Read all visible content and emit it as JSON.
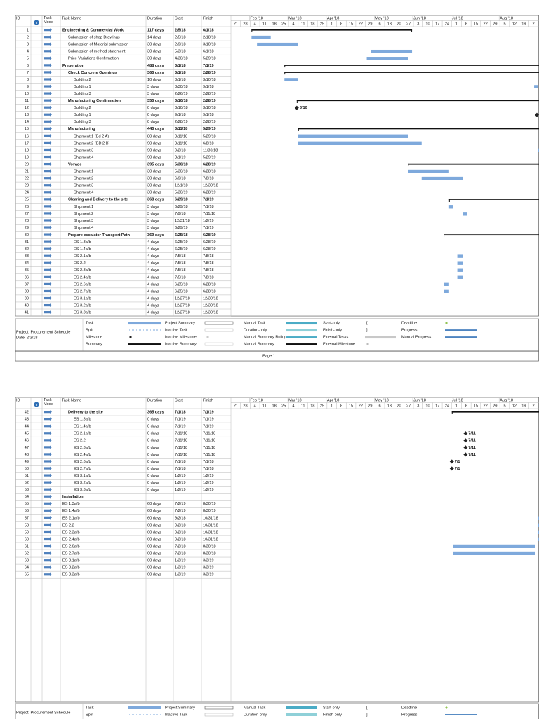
{
  "columns": [
    "ID",
    "Task Mode",
    "Task Name",
    "Duration",
    "Start",
    "Finish"
  ],
  "timescale": {
    "months": [
      "Feb '18",
      "Mar '18",
      "Apr '18",
      "May '18",
      "Jun '18",
      "Jul '18",
      "Aug '18"
    ],
    "days": [
      "21",
      "28",
      "4",
      "11",
      "18",
      "25",
      "4",
      "11",
      "18",
      "25",
      "1",
      "8",
      "15",
      "22",
      "29",
      "6",
      "13",
      "20",
      "27",
      "3",
      "10",
      "17",
      "24",
      "1",
      "8",
      "15",
      "22",
      "29",
      "5",
      "12",
      "19",
      "2"
    ]
  },
  "legend": [
    [
      "Task",
      "Split",
      "Milestone",
      "Summary"
    ],
    [
      "Project Summary",
      "Inactive Task",
      "Inactive Milestone",
      "Inactive Summary"
    ],
    [
      "Manual Task",
      "Duration-only",
      "Manual Summary Rollup",
      "Manual Summary"
    ],
    [
      "Start-only",
      "Finish-only",
      "External Tasks",
      "External Milestone"
    ],
    [
      "Deadline",
      "Progress",
      "Manual Progress"
    ]
  ],
  "pages": [
    {
      "footer": {
        "project": "Project: Procurement Schedule",
        "date": "Date: 2/3/18",
        "page": "Page 1"
      },
      "rows": [
        {
          "id": 1,
          "name": "Engineering & Commercial Work",
          "duration": "117 days",
          "start": "2/5/18",
          "finish": "6/1/18",
          "level": 1,
          "summary": true
        },
        {
          "id": 2,
          "name": "Submission of shop Drawings",
          "duration": "14 days",
          "start": "2/5/18",
          "finish": "2/18/18",
          "level": 2
        },
        {
          "id": 3,
          "name": "Submission of Material submission",
          "duration": "30 days",
          "start": "2/9/18",
          "finish": "3/10/18",
          "level": 2
        },
        {
          "id": 4,
          "name": "Submission of method statement",
          "duration": "30 days",
          "start": "5/3/18",
          "finish": "6/1/18",
          "level": 2
        },
        {
          "id": 5,
          "name": "Price Variations Confirmation",
          "duration": "30 days",
          "start": "4/30/18",
          "finish": "5/29/18",
          "level": 2
        },
        {
          "id": 6,
          "name": "Preperation",
          "duration": "488 days",
          "start": "3/1/18",
          "finish": "7/1/19",
          "level": 1,
          "summary": true
        },
        {
          "id": 7,
          "name": "Check Concrete Openings",
          "duration": "365 days",
          "start": "3/1/18",
          "finish": "2/28/19",
          "level": 2,
          "summary": true
        },
        {
          "id": 8,
          "name": "Building 2",
          "duration": "10 days",
          "start": "3/1/18",
          "finish": "3/10/18",
          "level": 3
        },
        {
          "id": 9,
          "name": "Building 1",
          "duration": "3 days",
          "start": "8/30/18",
          "finish": "9/1/18",
          "level": 3
        },
        {
          "id": 10,
          "name": "Building 3",
          "duration": "3 days",
          "start": "2/26/19",
          "finish": "2/28/19",
          "level": 3
        },
        {
          "id": 11,
          "name": "Manufacturing Confirmation",
          "duration": "355 days",
          "start": "3/10/18",
          "finish": "2/28/19",
          "level": 2,
          "summary": true
        },
        {
          "id": 12,
          "name": "Building 2",
          "duration": "0 days",
          "start": "3/10/18",
          "finish": "3/10/18",
          "level": 3,
          "label": "3/10"
        },
        {
          "id": 13,
          "name": "Building 1",
          "duration": "0 days",
          "start": "9/1/18",
          "finish": "9/1/18",
          "level": 3
        },
        {
          "id": 14,
          "name": "Building 3",
          "duration": "0 days",
          "start": "2/28/19",
          "finish": "2/28/19",
          "level": 3
        },
        {
          "id": 15,
          "name": "Manufacturing",
          "duration": "445 days",
          "start": "3/11/18",
          "finish": "5/29/19",
          "level": 2,
          "summary": true
        },
        {
          "id": 16,
          "name": "Shipment 1 (Bd 2 A)",
          "duration": "80 days",
          "start": "3/11/18",
          "finish": "5/29/18",
          "level": 3
        },
        {
          "id": 17,
          "name": "Shipment 2 (BD 2 B)",
          "duration": "90 days",
          "start": "3/11/18",
          "finish": "6/8/18",
          "level": 3
        },
        {
          "id": 18,
          "name": "Shipment 3",
          "duration": "90 days",
          "start": "9/2/18",
          "finish": "11/30/18",
          "level": 3
        },
        {
          "id": 19,
          "name": "Shipment 4",
          "duration": "90 days",
          "start": "3/1/19",
          "finish": "5/29/19",
          "level": 3
        },
        {
          "id": 20,
          "name": "Voyage",
          "duration": "395 days",
          "start": "5/30/18",
          "finish": "6/28/19",
          "level": 2,
          "summary": true
        },
        {
          "id": 21,
          "name": "Shipment 1",
          "duration": "30 days",
          "start": "5/30/18",
          "finish": "6/28/18",
          "level": 3
        },
        {
          "id": 22,
          "name": "Shipment 2",
          "duration": "30 days",
          "start": "6/9/18",
          "finish": "7/8/18",
          "level": 3
        },
        {
          "id": 23,
          "name": "Shipment 3",
          "duration": "30 days",
          "start": "12/1/18",
          "finish": "12/30/18",
          "level": 3
        },
        {
          "id": 24,
          "name": "Shipment 4",
          "duration": "30 days",
          "start": "5/30/19",
          "finish": "6/28/19",
          "level": 3
        },
        {
          "id": 25,
          "name": "Clearing and Delivery to the site",
          "duration": "368 days",
          "start": "6/29/18",
          "finish": "7/1/19",
          "level": 2,
          "summary": true
        },
        {
          "id": 26,
          "name": "Shipment 1",
          "duration": "3 days",
          "start": "6/29/18",
          "finish": "7/1/18",
          "level": 3
        },
        {
          "id": 27,
          "name": "Shipment 2",
          "duration": "3 days",
          "start": "7/9/18",
          "finish": "7/11/18",
          "level": 3
        },
        {
          "id": 28,
          "name": "Shipment 3",
          "duration": "3 days",
          "start": "12/31/18",
          "finish": "1/2/19",
          "level": 3
        },
        {
          "id": 29,
          "name": "Shipment 4",
          "duration": "3 days",
          "start": "6/29/19",
          "finish": "7/1/19",
          "level": 3
        },
        {
          "id": 30,
          "name": "Prepare escalator Transport Path",
          "duration": "369 days",
          "start": "6/25/18",
          "finish": "6/28/19",
          "level": 2,
          "summary": true
        },
        {
          "id": 31,
          "name": "ES 1.3a/b",
          "duration": "4 days",
          "start": "6/25/19",
          "finish": "6/28/19",
          "level": 3
        },
        {
          "id": 32,
          "name": "ES 1.4a/b",
          "duration": "4 days",
          "start": "6/25/19",
          "finish": "6/28/19",
          "level": 3
        },
        {
          "id": 33,
          "name": "ES 2.1a/b",
          "duration": "4 days",
          "start": "7/5/18",
          "finish": "7/8/18",
          "level": 3
        },
        {
          "id": 34,
          "name": "ES 2.2",
          "duration": "4 days",
          "start": "7/5/18",
          "finish": "7/8/18",
          "level": 3
        },
        {
          "id": 35,
          "name": "ES 2.3a/b",
          "duration": "4 days",
          "start": "7/5/18",
          "finish": "7/8/18",
          "level": 3
        },
        {
          "id": 36,
          "name": "ES 2.4a/b",
          "duration": "4 days",
          "start": "7/5/18",
          "finish": "7/8/18",
          "level": 3
        },
        {
          "id": 37,
          "name": "ES 2.6a/b",
          "duration": "4 days",
          "start": "6/25/18",
          "finish": "6/28/18",
          "level": 3
        },
        {
          "id": 38,
          "name": "ES 2.7a/b",
          "duration": "4 days",
          "start": "6/25/18",
          "finish": "6/28/18",
          "level": 3
        },
        {
          "id": 39,
          "name": "ES 3.1a/b",
          "duration": "4 days",
          "start": "12/27/18",
          "finish": "12/30/18",
          "level": 3
        },
        {
          "id": 40,
          "name": "ES 3.2a/b",
          "duration": "4 days",
          "start": "12/27/18",
          "finish": "12/30/18",
          "level": 3
        },
        {
          "id": 41,
          "name": "ES 3.3a/b",
          "duration": "4 days",
          "start": "12/27/18",
          "finish": "12/30/18",
          "level": 3
        }
      ]
    },
    {
      "footer": {
        "project": "Project: Procurement Schedule"
      },
      "rows": [
        {
          "id": 42,
          "name": "Delivery to the site",
          "duration": "365 days",
          "start": "7/1/18",
          "finish": "7/1/19",
          "level": 2,
          "summary": true
        },
        {
          "id": 43,
          "name": "ES 1.3a/b",
          "duration": "0 days",
          "start": "7/1/19",
          "finish": "7/1/19",
          "level": 3
        },
        {
          "id": 44,
          "name": "ES 1.4a/b",
          "duration": "0 days",
          "start": "7/1/19",
          "finish": "7/1/19",
          "level": 3
        },
        {
          "id": 45,
          "name": "ES 2.1a/b",
          "duration": "0 days",
          "start": "7/11/18",
          "finish": "7/11/18",
          "level": 3,
          "label": "7/11"
        },
        {
          "id": 46,
          "name": "ES 2.2",
          "duration": "0 days",
          "start": "7/11/18",
          "finish": "7/11/18",
          "level": 3,
          "label": "7/11"
        },
        {
          "id": 47,
          "name": "ES 2.3a/b",
          "duration": "0 days",
          "start": "7/11/18",
          "finish": "7/11/18",
          "level": 3,
          "label": "7/11"
        },
        {
          "id": 48,
          "name": "ES 2.4a/b",
          "duration": "0 days",
          "start": "7/11/18",
          "finish": "7/11/18",
          "level": 3,
          "label": "7/11"
        },
        {
          "id": 49,
          "name": "ES 2.6a/b",
          "duration": "0 days",
          "start": "7/1/18",
          "finish": "7/1/18",
          "level": 3,
          "label": "7/1"
        },
        {
          "id": 50,
          "name": "ES 2.7a/b",
          "duration": "0 days",
          "start": "7/1/18",
          "finish": "7/1/18",
          "level": 3,
          "label": "7/1"
        },
        {
          "id": 51,
          "name": "ES 3.1a/b",
          "duration": "0 days",
          "start": "1/2/19",
          "finish": "1/2/19",
          "level": 3
        },
        {
          "id": 52,
          "name": "ES 3.2a/b",
          "duration": "0 days",
          "start": "1/2/19",
          "finish": "1/2/19",
          "level": 3
        },
        {
          "id": 53,
          "name": "ES 3.3a/b",
          "duration": "0 days",
          "start": "1/2/19",
          "finish": "1/2/19",
          "level": 3
        },
        {
          "id": 54,
          "name": "Installation",
          "level": 1,
          "summary": true
        },
        {
          "id": 55,
          "name": "ES 1.3a/b",
          "duration": "60 days",
          "start": "7/2/19",
          "finish": "8/30/19",
          "level": 1
        },
        {
          "id": 56,
          "name": "ES 1.4a/b",
          "duration": "60 days",
          "start": "7/2/19",
          "finish": "8/30/19",
          "level": 1
        },
        {
          "id": 57,
          "name": "ES 2.1a/b",
          "duration": "60 days",
          "start": "9/2/18",
          "finish": "10/31/18",
          "level": 1
        },
        {
          "id": 58,
          "name": "ES 2.2",
          "duration": "60 days",
          "start": "9/2/18",
          "finish": "10/31/18",
          "level": 1
        },
        {
          "id": 59,
          "name": "ES 2.3a/b",
          "duration": "60 days",
          "start": "9/2/18",
          "finish": "10/31/18",
          "level": 1
        },
        {
          "id": 60,
          "name": "ES 2.4a/b",
          "duration": "60 days",
          "start": "9/2/18",
          "finish": "10/31/18",
          "level": 1
        },
        {
          "id": 61,
          "name": "ES 2.6a/b",
          "duration": "60 days",
          "start": "7/2/18",
          "finish": "8/30/18",
          "level": 1
        },
        {
          "id": 62,
          "name": "ES 2.7a/b",
          "duration": "60 days",
          "start": "7/2/18",
          "finish": "8/30/18",
          "level": 1
        },
        {
          "id": 63,
          "name": "ES 3.1a/b",
          "duration": "60 days",
          "start": "1/3/19",
          "finish": "3/3/19",
          "level": 1
        },
        {
          "id": 64,
          "name": "ES 3.2a/b",
          "duration": "60 days",
          "start": "1/3/19",
          "finish": "3/3/19",
          "level": 1
        },
        {
          "id": 65,
          "name": "ES 3.3a/b",
          "duration": "60 days",
          "start": "1/3/19",
          "finish": "3/3/19",
          "level": 1
        }
      ]
    }
  ]
}
